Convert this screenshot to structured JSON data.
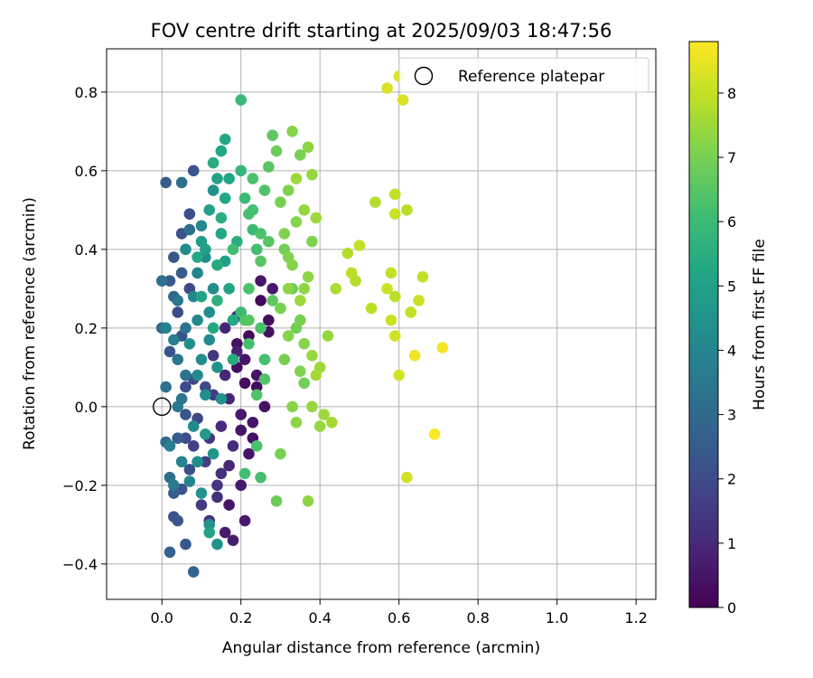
{
  "chart_data": {
    "type": "scatter",
    "title": "FOV centre drift starting at 2025/09/03 18:47:56",
    "xlabel": "Angular distance from reference (arcmin)",
    "ylabel": "Rotation from reference (arcmin)",
    "xlim": [
      -0.14,
      1.25
    ],
    "ylim": [
      -0.49,
      0.91
    ],
    "x_ticks": [
      0.0,
      0.2,
      0.4,
      0.6,
      0.8,
      1.0,
      1.2
    ],
    "x_tick_labels": [
      "0.0",
      "0.2",
      "0.4",
      "0.6",
      "0.8",
      "1.0",
      "1.2"
    ],
    "y_ticks": [
      -0.4,
      -0.2,
      0.0,
      0.2,
      0.4,
      0.6,
      0.8
    ],
    "y_tick_labels": [
      "−0.4",
      "−0.2",
      "0.0",
      "0.2",
      "0.4",
      "0.6",
      "0.8"
    ],
    "grid": true,
    "legend": {
      "placement": "top-right",
      "entries": [
        "Reference platepar"
      ]
    },
    "reference_point": {
      "x": 0.0,
      "y": 0.0,
      "label": "Reference platepar"
    },
    "colorbar": {
      "label": "Hours from first FF file",
      "min": 0,
      "max": 8.8,
      "ticks": [
        0,
        1,
        2,
        3,
        4,
        5,
        6,
        7,
        8
      ],
      "colormap": "viridis"
    },
    "points": [
      [
        0.25,
        0.27,
        0.2
      ],
      [
        0.27,
        0.22,
        0.3
      ],
      [
        0.19,
        0.16,
        0.4
      ],
      [
        0.21,
        0.12,
        0.5
      ],
      [
        0.24,
        0.05,
        0.3
      ],
      [
        0.26,
        0.0,
        0.4
      ],
      [
        0.23,
        -0.04,
        0.5
      ],
      [
        0.2,
        -0.02,
        0.6
      ],
      [
        0.22,
        -0.12,
        0.5
      ],
      [
        0.2,
        -0.2,
        0.6
      ],
      [
        0.17,
        -0.25,
        0.5
      ],
      [
        0.21,
        -0.29,
        0.6
      ],
      [
        0.18,
        -0.34,
        0.7
      ],
      [
        0.27,
        0.19,
        0.4
      ],
      [
        0.24,
        0.08,
        0.5
      ],
      [
        0.22,
        0.18,
        0.2
      ],
      [
        0.19,
        0.1,
        0.3
      ],
      [
        0.23,
        -0.08,
        0.4
      ],
      [
        0.2,
        -0.06,
        0.5
      ],
      [
        0.16,
        -0.32,
        0.6
      ],
      [
        0.25,
        0.32,
        0.5
      ],
      [
        0.28,
        0.3,
        0.6
      ],
      [
        0.21,
        0.06,
        0.3
      ],
      [
        0.19,
        0.14,
        0.8
      ],
      [
        0.16,
        0.08,
        1.0
      ],
      [
        0.18,
        -0.1,
        1.1
      ],
      [
        0.15,
        -0.17,
        1.2
      ],
      [
        0.14,
        -0.2,
        1.3
      ],
      [
        0.12,
        -0.08,
        1.4
      ],
      [
        0.13,
        0.03,
        1.5
      ],
      [
        0.16,
        0.2,
        1.0
      ],
      [
        0.11,
        -0.14,
        1.6
      ],
      [
        0.1,
        -0.25,
        1.5
      ],
      [
        0.08,
        -0.1,
        1.7
      ],
      [
        0.14,
        -0.23,
        1.2
      ],
      [
        0.17,
        0.02,
        0.9
      ],
      [
        0.13,
        0.13,
        1.4
      ],
      [
        0.09,
        -0.03,
        1.8
      ],
      [
        0.11,
        0.05,
        1.9
      ],
      [
        0.12,
        -0.29,
        1.3
      ],
      [
        0.15,
        -0.05,
        1.1
      ],
      [
        0.17,
        -0.15,
        1.0
      ],
      [
        0.19,
        0.23,
        0.9
      ],
      [
        0.06,
        -0.08,
        2.0
      ],
      [
        0.07,
        -0.16,
        2.1
      ],
      [
        0.05,
        -0.21,
        2.2
      ],
      [
        0.04,
        -0.29,
        2.3
      ],
      [
        0.06,
        -0.35,
        2.4
      ],
      [
        0.08,
        0.6,
        2.3
      ],
      [
        0.05,
        0.44,
        2.2
      ],
      [
        0.03,
        0.38,
        2.4
      ],
      [
        0.07,
        0.49,
        2.1
      ],
      [
        0.04,
        0.24,
        2.0
      ],
      [
        0.02,
        0.14,
        2.3
      ],
      [
        0.06,
        0.05,
        2.1
      ],
      [
        0.04,
        -0.08,
        2.5
      ],
      [
        0.03,
        -0.28,
        2.2
      ],
      [
        0.05,
        0.18,
        2.2
      ],
      [
        0.07,
        0.3,
        2.0
      ],
      [
        0.08,
        0.07,
        1.9
      ],
      [
        0.02,
        0.32,
        2.4
      ],
      [
        0.01,
        0.57,
        2.6
      ],
      [
        0.06,
        -0.02,
        2.3
      ],
      [
        0.03,
        -0.22,
        2.6
      ],
      [
        0.05,
        0.34,
        2.5
      ],
      [
        0.02,
        -0.37,
        2.7
      ],
      [
        0.08,
        -0.42,
        2.8
      ],
      [
        0.03,
        0.28,
        2.9
      ],
      [
        0.0,
        0.2,
        3.0
      ],
      [
        0.01,
        -0.09,
        3.1
      ],
      [
        0.02,
        -0.18,
        3.2
      ],
      [
        0.0,
        0.32,
        3.3
      ],
      [
        0.04,
        0.12,
        3.4
      ],
      [
        0.05,
        0.02,
        3.5
      ],
      [
        0.01,
        0.05,
        3.2
      ],
      [
        0.03,
        -0.2,
        3.6
      ],
      [
        0.06,
        0.08,
        3.3
      ],
      [
        0.04,
        0.27,
        3.5
      ],
      [
        0.07,
        0.45,
        3.1
      ],
      [
        0.05,
        0.57,
        3.2
      ],
      [
        0.02,
        -0.1,
        3.7
      ],
      [
        0.06,
        0.2,
        3.4
      ],
      [
        0.03,
        0.17,
        3.8
      ],
      [
        0.05,
        -0.14,
        3.9
      ],
      [
        0.07,
        -0.19,
        4.0
      ],
      [
        0.04,
        0.0,
        3.6
      ],
      [
        0.01,
        0.2,
        3.9
      ],
      [
        0.08,
        0.28,
        4.0
      ],
      [
        0.06,
        0.4,
        4.2
      ],
      [
        0.09,
        0.22,
        4.1
      ],
      [
        0.1,
        0.12,
        4.3
      ],
      [
        0.11,
        0.03,
        4.4
      ],
      [
        0.08,
        -0.05,
        4.2
      ],
      [
        0.09,
        -0.14,
        4.3
      ],
      [
        0.1,
        -0.22,
        4.5
      ],
      [
        0.12,
        0.17,
        4.2
      ],
      [
        0.13,
        0.3,
        4.4
      ],
      [
        0.11,
        0.38,
        4.3
      ],
      [
        0.1,
        0.46,
        4.1
      ],
      [
        0.13,
        0.55,
        4.5
      ],
      [
        0.14,
        -0.35,
        4.6
      ],
      [
        0.12,
        -0.3,
        4.5
      ],
      [
        0.09,
        0.34,
        4.0
      ],
      [
        0.12,
        0.24,
        4.3
      ],
      [
        0.14,
        0.1,
        4.6
      ],
      [
        0.07,
        0.16,
        4.4
      ],
      [
        0.15,
        0.02,
        4.5
      ],
      [
        0.11,
        -0.07,
        4.7
      ],
      [
        0.13,
        -0.12,
        4.6
      ],
      [
        0.09,
        0.08,
        4.2
      ],
      [
        0.1,
        0.42,
        4.9
      ],
      [
        0.12,
        0.5,
        5.0
      ],
      [
        0.14,
        0.58,
        5.1
      ],
      [
        0.15,
        0.65,
        5.2
      ],
      [
        0.16,
        0.68,
        5.3
      ],
      [
        0.13,
        0.62,
        5.4
      ],
      [
        0.16,
        0.37,
        5.0
      ],
      [
        0.15,
        0.44,
        5.2
      ],
      [
        0.17,
        0.3,
        5.1
      ],
      [
        0.18,
        0.22,
        5.3
      ],
      [
        0.14,
        0.36,
        5.4
      ],
      [
        0.16,
        0.53,
        5.2
      ],
      [
        0.12,
        -0.32,
        5.1
      ],
      [
        0.15,
        0.48,
        5.5
      ],
      [
        0.11,
        0.4,
        5.0
      ],
      [
        0.13,
        0.2,
        5.3
      ],
      [
        0.17,
        0.58,
        5.2
      ],
      [
        0.18,
        0.12,
        5.4
      ],
      [
        0.1,
        0.28,
        5.1
      ],
      [
        0.09,
        0.38,
        5.3
      ],
      [
        0.19,
        0.42,
        5.5
      ],
      [
        0.14,
        0.27,
        5.6
      ],
      [
        0.2,
        0.6,
        5.8
      ],
      [
        0.21,
        0.53,
        6.0
      ],
      [
        0.22,
        0.49,
        6.2
      ],
      [
        0.23,
        0.45,
        6.0
      ],
      [
        0.24,
        0.4,
        6.1
      ],
      [
        0.22,
        0.3,
        6.3
      ],
      [
        0.2,
        0.24,
        6.0
      ],
      [
        0.22,
        0.16,
        6.2
      ],
      [
        0.24,
        -0.1,
        6.3
      ],
      [
        0.21,
        -0.17,
        6.1
      ],
      [
        0.25,
        -0.18,
        6.2
      ],
      [
        0.2,
        0.78,
        5.9
      ],
      [
        0.18,
        0.4,
        6.1
      ],
      [
        0.25,
        0.44,
        6.3
      ],
      [
        0.23,
        0.5,
        6.2
      ],
      [
        0.21,
        0.22,
        6.4
      ],
      [
        0.25,
        0.37,
        6.5
      ],
      [
        0.26,
        0.55,
        6.4
      ],
      [
        0.27,
        0.61,
        6.5
      ],
      [
        0.28,
        0.69,
        6.6
      ],
      [
        0.23,
        0.58,
        6.3
      ],
      [
        0.26,
        0.12,
        6.2
      ],
      [
        0.24,
        0.03,
        6.4
      ],
      [
        0.22,
        0.22,
        6.5
      ],
      [
        0.28,
        0.27,
        6.6
      ],
      [
        0.27,
        0.42,
        6.5
      ],
      [
        0.26,
        0.07,
        6.4
      ],
      [
        0.25,
        0.2,
        6.3
      ],
      [
        0.29,
        0.65,
        6.8
      ],
      [
        0.3,
        0.52,
        7.0
      ],
      [
        0.31,
        0.4,
        6.9
      ],
      [
        0.32,
        0.38,
        7.1
      ],
      [
        0.3,
        0.25,
        7.0
      ],
      [
        0.33,
        0.3,
        6.8
      ],
      [
        0.32,
        0.18,
        7.2
      ],
      [
        0.34,
        0.2,
        6.9
      ],
      [
        0.31,
        0.12,
        7.0
      ],
      [
        0.35,
        0.09,
        7.1
      ],
      [
        0.33,
        0.0,
        7.2
      ],
      [
        0.36,
        0.06,
        6.9
      ],
      [
        0.34,
        -0.04,
        7.3
      ],
      [
        0.3,
        -0.12,
        7.0
      ],
      [
        0.29,
        -0.24,
        6.8
      ],
      [
        0.32,
        0.55,
        7.1
      ],
      [
        0.33,
        0.7,
        7.2
      ],
      [
        0.35,
        0.64,
        7.0
      ],
      [
        0.37,
        0.66,
        7.3
      ],
      [
        0.34,
        0.47,
        7.2
      ],
      [
        0.36,
        0.5,
        7.4
      ],
      [
        0.38,
        0.42,
        7.1
      ],
      [
        0.37,
        0.33,
        7.3
      ],
      [
        0.35,
        0.22,
        7.0
      ],
      [
        0.36,
        0.16,
        7.2
      ],
      [
        0.38,
        0.13,
        7.4
      ],
      [
        0.37,
        -0.24,
        7.3
      ],
      [
        0.34,
        0.58,
        7.5
      ],
      [
        0.31,
        0.44,
        7.1
      ],
      [
        0.33,
        0.36,
        7.2
      ],
      [
        0.38,
        0.59,
        7.4
      ],
      [
        0.39,
        0.48,
        7.5
      ],
      [
        0.36,
        0.3,
        7.3
      ],
      [
        0.38,
        0.0,
        7.4
      ],
      [
        0.4,
        0.1,
        7.5
      ],
      [
        0.39,
        0.08,
        7.6
      ],
      [
        0.41,
        -0.02,
        7.5
      ],
      [
        0.42,
        0.18,
        7.4
      ],
      [
        0.43,
        -0.04,
        7.6
      ],
      [
        0.4,
        -0.05,
        7.4
      ],
      [
        0.35,
        0.27,
        7.5
      ],
      [
        0.32,
        0.3,
        7.3
      ],
      [
        0.44,
        0.3,
        7.7
      ],
      [
        0.47,
        0.39,
        7.8
      ],
      [
        0.48,
        0.34,
        7.9
      ],
      [
        0.49,
        0.32,
        7.8
      ],
      [
        0.5,
        0.41,
        8.0
      ],
      [
        0.53,
        0.25,
        7.9
      ],
      [
        0.54,
        0.52,
        7.8
      ],
      [
        0.57,
        0.3,
        8.1
      ],
      [
        0.58,
        0.34,
        8.0
      ],
      [
        0.59,
        0.28,
        7.9
      ],
      [
        0.58,
        0.22,
        8.1
      ],
      [
        0.59,
        0.18,
        8.2
      ],
      [
        0.59,
        0.54,
        8.0
      ],
      [
        0.59,
        0.49,
        8.1
      ],
      [
        0.62,
        0.5,
        7.9
      ],
      [
        0.63,
        0.24,
        8.0
      ],
      [
        0.65,
        0.27,
        8.1
      ],
      [
        0.66,
        0.33,
        8.0
      ],
      [
        0.6,
        0.08,
        8.2
      ],
      [
        0.62,
        -0.18,
        8.2
      ],
      [
        0.57,
        0.81,
        8.3
      ],
      [
        0.6,
        0.84,
        8.4
      ],
      [
        0.61,
        0.78,
        8.3
      ],
      [
        0.64,
        0.13,
        8.6
      ],
      [
        0.71,
        0.15,
        8.7
      ],
      [
        0.69,
        -0.07,
        8.8
      ]
    ]
  }
}
